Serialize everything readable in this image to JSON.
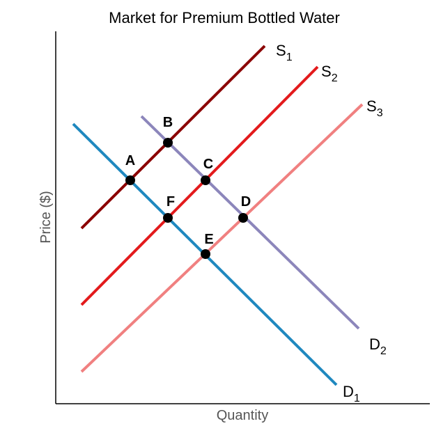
{
  "title": "Market for Premium Bottled Water",
  "xlabel": "Quantity",
  "ylabel": "Price ($)",
  "colors": {
    "S1": "#8b0000",
    "S2": "#e31a1c",
    "S3": "#f08080",
    "D1": "#1f88bf",
    "D2": "#8c86bb",
    "axis": "#000000",
    "point": "#000000"
  },
  "curves": [
    {
      "id": "S1",
      "base": "S",
      "sub": "1",
      "color": "#8b0000"
    },
    {
      "id": "S2",
      "base": "S",
      "sub": "2",
      "color": "#e31a1c"
    },
    {
      "id": "S3",
      "base": "S",
      "sub": "3",
      "color": "#f08080"
    },
    {
      "id": "D1",
      "base": "D",
      "sub": "1",
      "color": "#1f88bf"
    },
    {
      "id": "D2",
      "base": "D",
      "sub": "2",
      "color": "#8c86bb"
    }
  ],
  "points": [
    {
      "label": "A"
    },
    {
      "label": "B"
    },
    {
      "label": "C"
    },
    {
      "label": "D"
    },
    {
      "label": "E"
    },
    {
      "label": "F"
    }
  ]
}
